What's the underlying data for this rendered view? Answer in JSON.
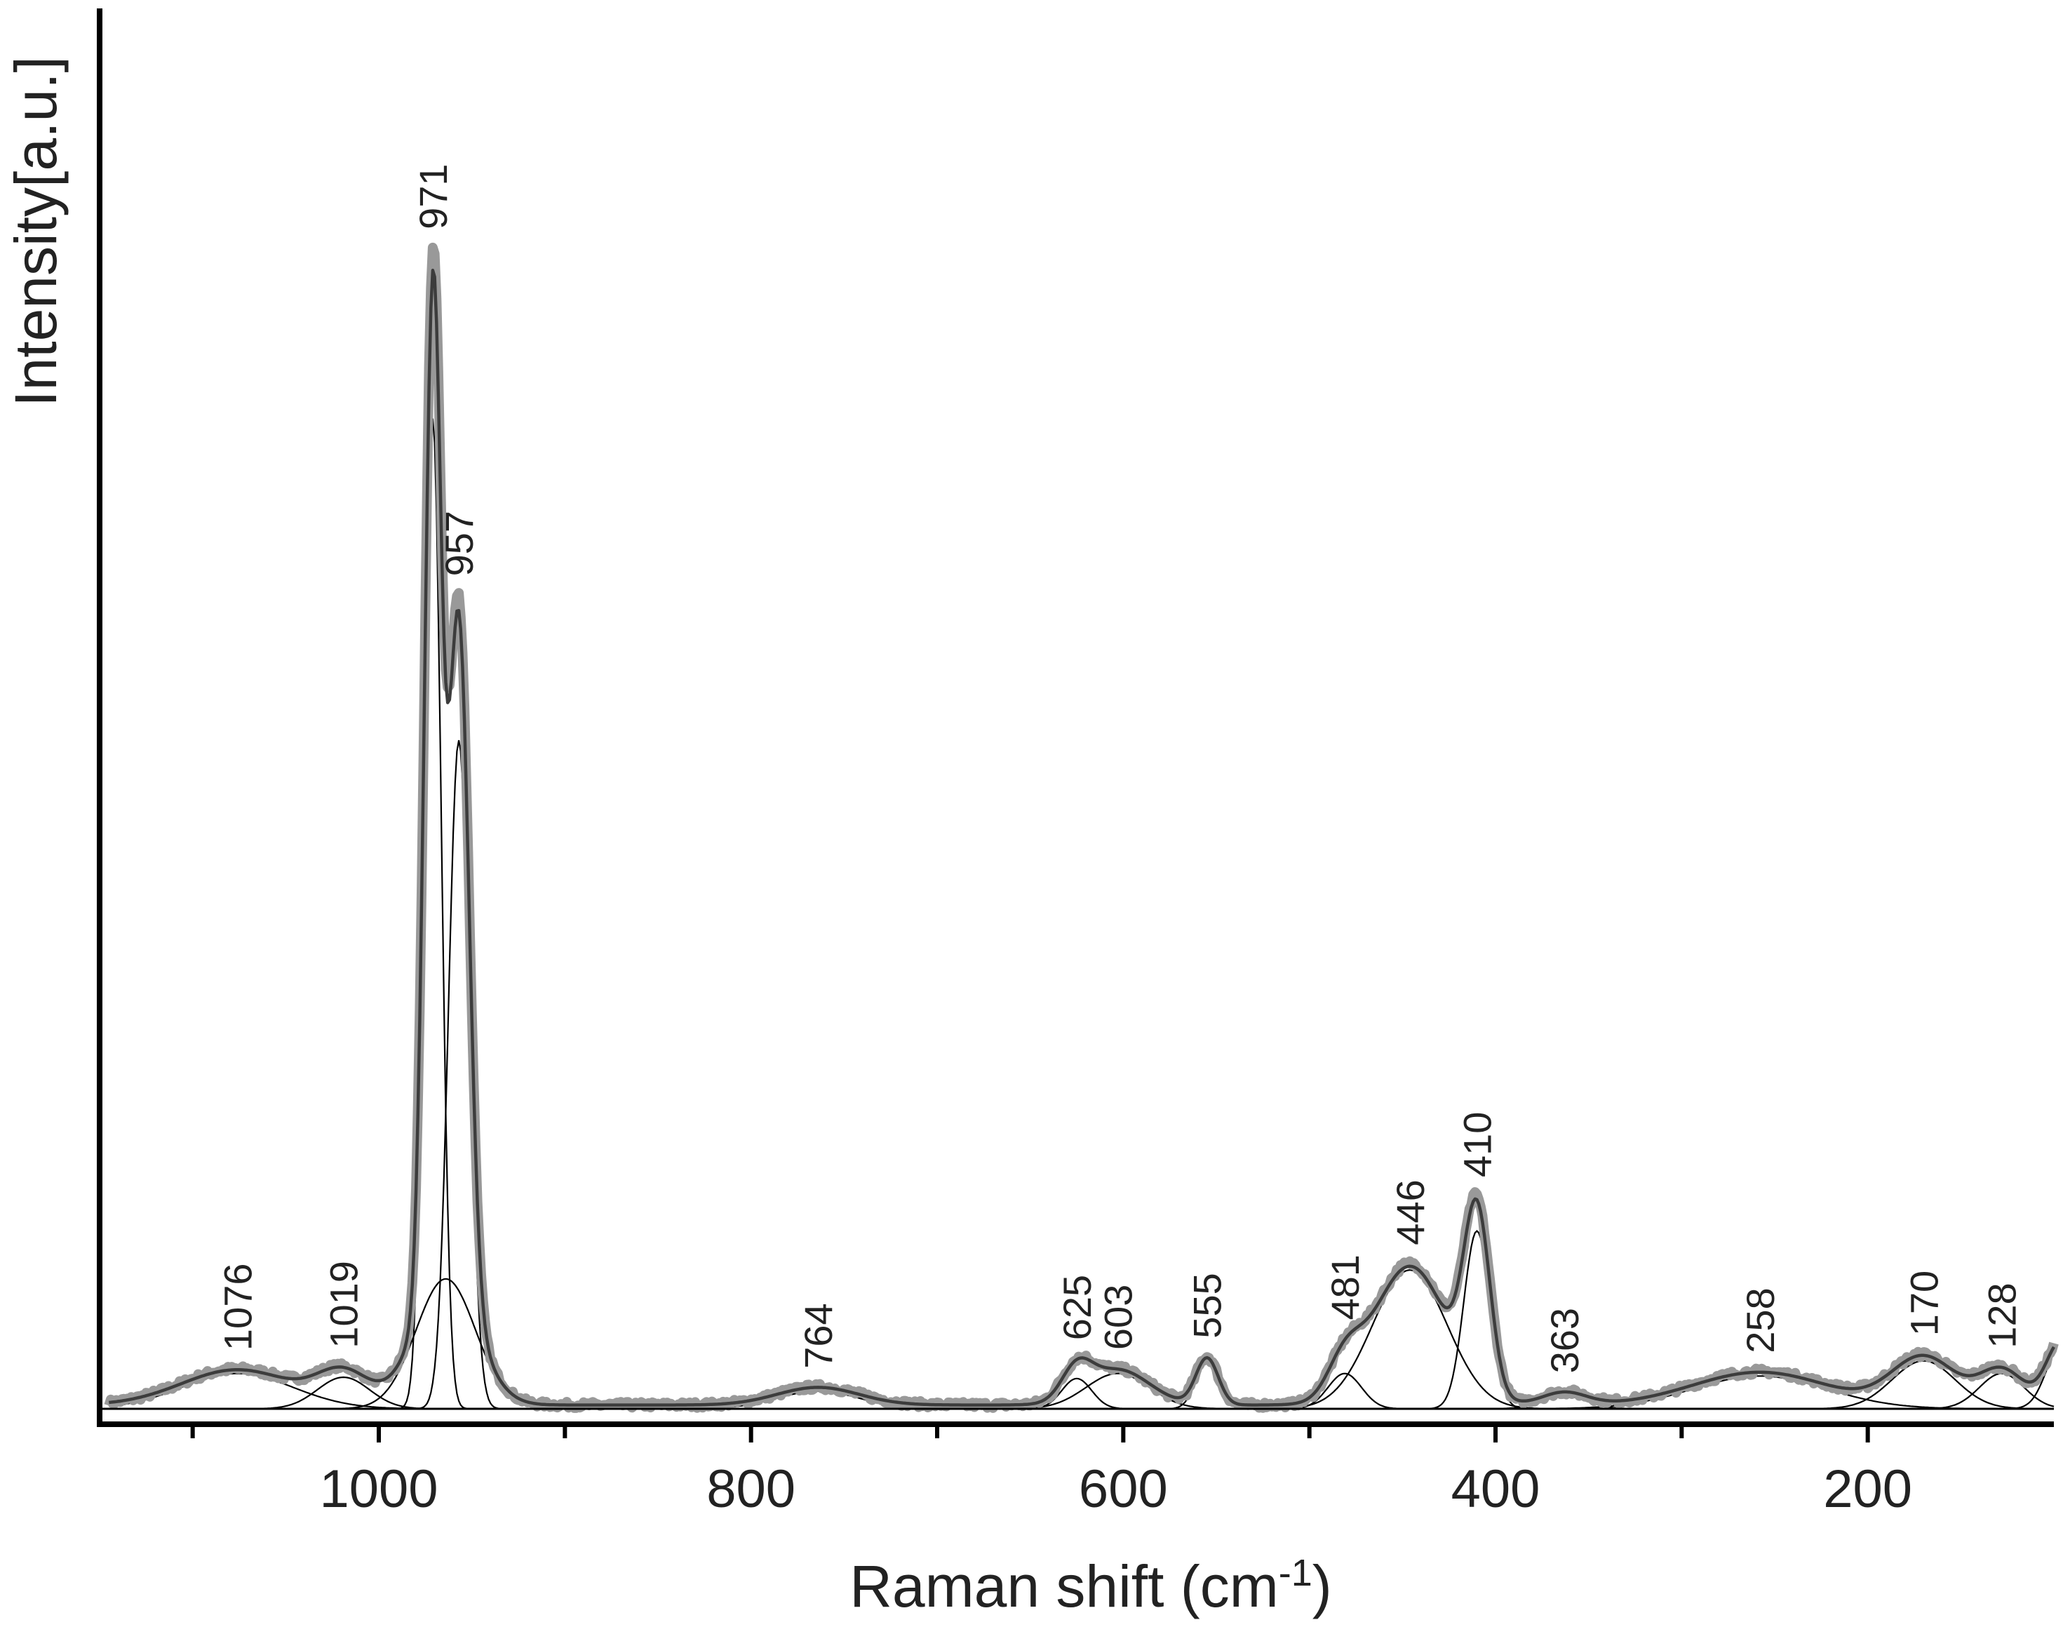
{
  "chart_data": {
    "type": "line",
    "xlabel": "Raman shift (cm",
    "xlabel_sup": "-1",
    "xlabel_end": ")",
    "ylabel": "Intensity[a.u.]",
    "x_reversed": true,
    "xlim": [
      1150,
      100
    ],
    "ylim": [
      0,
      100
    ],
    "x_ticks": [
      1000,
      800,
      600,
      400,
      200
    ],
    "x_tick_labels": [
      "1000",
      "800",
      "600",
      "400",
      "200"
    ],
    "x_minor_ticks": [
      1100,
      900,
      700,
      500,
      300
    ],
    "grid": false,
    "legend": "none",
    "colors": {
      "measured": "#999999",
      "fit_envelope": "#3c3c3c",
      "components": "#000000",
      "axis": "#000000"
    },
    "peak_labels": [
      "1076",
      "1019",
      "971",
      "957",
      "764",
      "625",
      "603",
      "555",
      "481",
      "446",
      "410",
      "363",
      "258",
      "170",
      "128"
    ],
    "components": [
      {
        "center": 1076,
        "height": 2.8,
        "width": 30
      },
      {
        "center": 1019,
        "height": 2.5,
        "width": 14
      },
      {
        "center": 971,
        "height": 78.5,
        "width": 4.5
      },
      {
        "center": 957,
        "height": 53.0,
        "width": 5.5
      },
      {
        "center": 964,
        "height": 10.3,
        "width": 16
      },
      {
        "center": 764,
        "height": 1.4,
        "width": 22
      },
      {
        "center": 625,
        "height": 2.4,
        "width": 8
      },
      {
        "center": 603,
        "height": 2.8,
        "width": 17
      },
      {
        "center": 555,
        "height": 3.7,
        "width": 6
      },
      {
        "center": 481,
        "height": 2.8,
        "width": 9
      },
      {
        "center": 446,
        "height": 11.0,
        "width": 20
      },
      {
        "center": 410,
        "height": 14.1,
        "width": 7
      },
      {
        "center": 363,
        "height": 1.0,
        "width": 12
      },
      {
        "center": 258,
        "height": 2.6,
        "width": 36
      },
      {
        "center": 170,
        "height": 3.8,
        "width": 17
      },
      {
        "center": 128,
        "height": 2.8,
        "width": 12
      },
      {
        "center": 96,
        "height": 5.0,
        "width": 8
      }
    ]
  }
}
